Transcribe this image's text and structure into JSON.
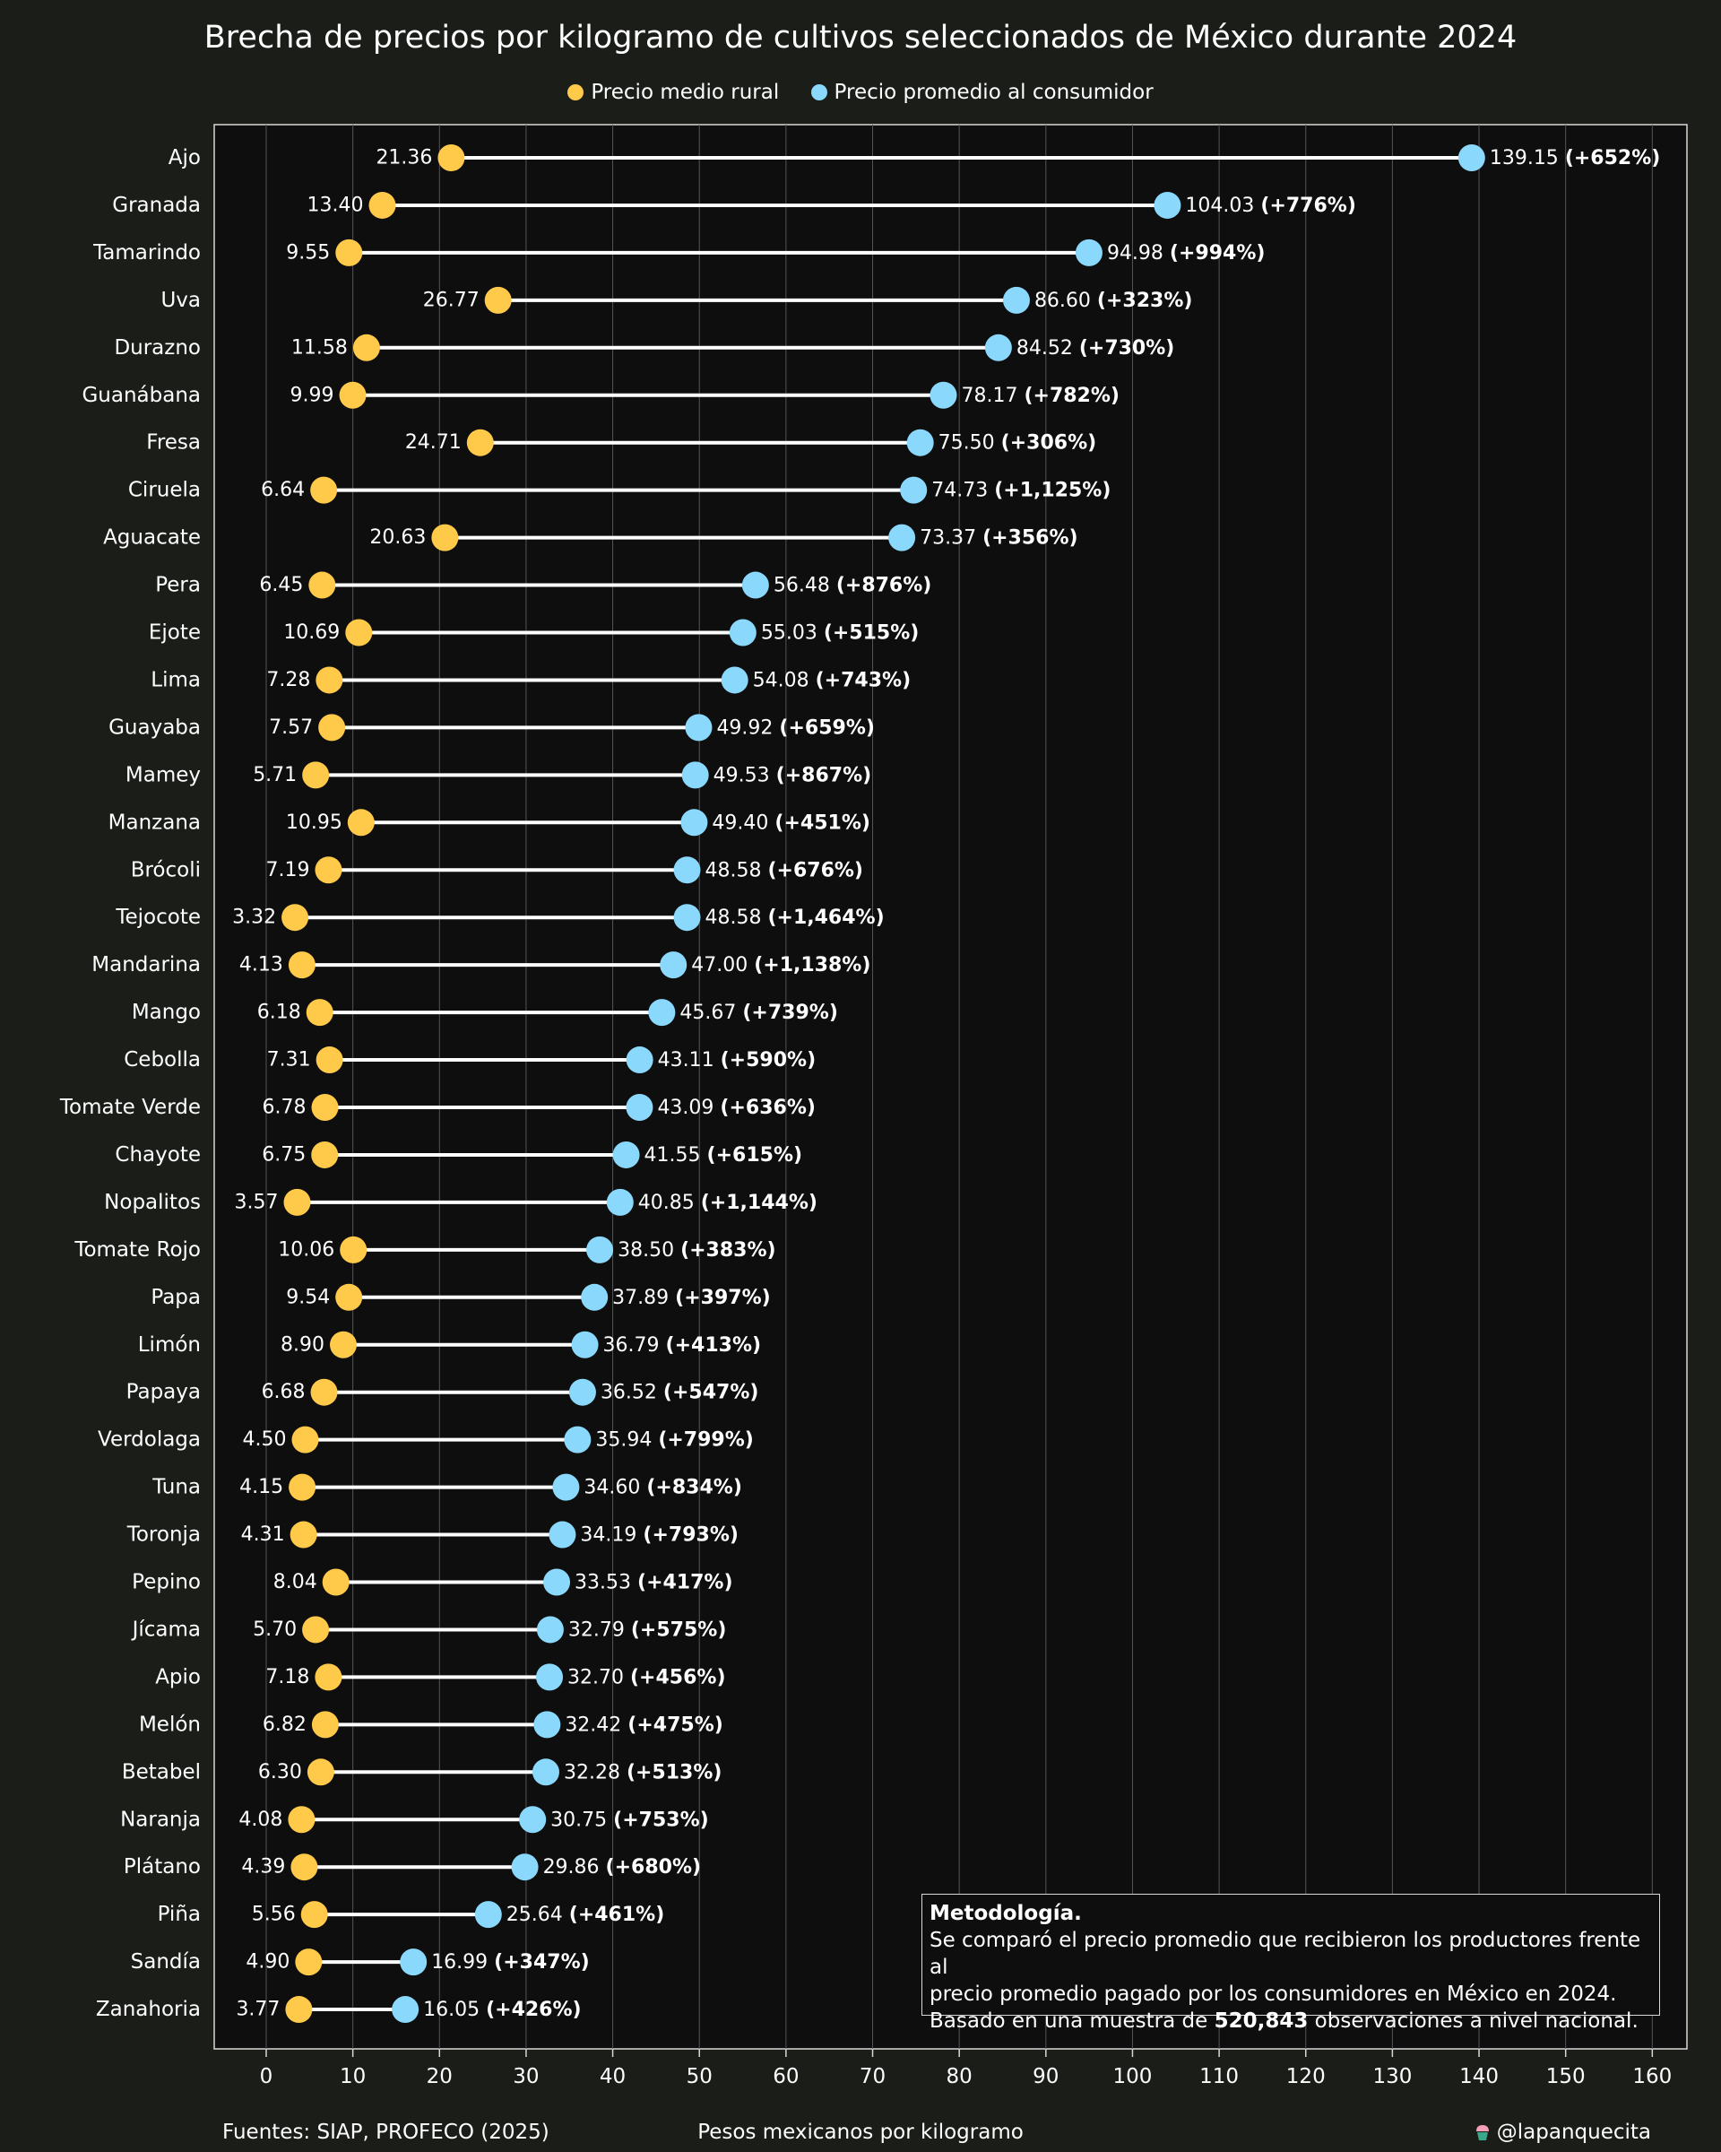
{
  "chart_data": {
    "type": "dumbbell",
    "title": "Brecha de precios por kilogramo de cultivos seleccionados de México durante 2024",
    "xlabel": "Pesos mexicanos por kilogramo",
    "xlim": [
      -6,
      164
    ],
    "xticks": [
      0,
      10,
      20,
      30,
      40,
      50,
      60,
      70,
      80,
      90,
      100,
      110,
      120,
      130,
      140,
      150,
      160
    ],
    "grid": true,
    "legend_position": "top-center",
    "series": [
      {
        "name": "Precio medio rural",
        "color": "#ffc94a"
      },
      {
        "name": "Precio promedio al consumidor",
        "color": "#8ad8fb"
      }
    ],
    "rows": [
      {
        "label": "Ajo",
        "rural": 21.36,
        "consumer": 139.15,
        "gap": "(+652%)"
      },
      {
        "label": "Granada",
        "rural": 13.4,
        "consumer": 104.03,
        "gap": "(+776%)"
      },
      {
        "label": "Tamarindo",
        "rural": 9.55,
        "consumer": 94.98,
        "gap": "(+994%)"
      },
      {
        "label": "Uva",
        "rural": 26.77,
        "consumer": 86.6,
        "gap": "(+323%)"
      },
      {
        "label": "Durazno",
        "rural": 11.58,
        "consumer": 84.52,
        "gap": "(+730%)"
      },
      {
        "label": "Guanábana",
        "rural": 9.99,
        "consumer": 78.17,
        "gap": "(+782%)"
      },
      {
        "label": "Fresa",
        "rural": 24.71,
        "consumer": 75.5,
        "gap": "(+306%)"
      },
      {
        "label": "Ciruela",
        "rural": 6.64,
        "consumer": 74.73,
        "gap": "(+1,125%)"
      },
      {
        "label": "Aguacate",
        "rural": 20.63,
        "consumer": 73.37,
        "gap": "(+356%)"
      },
      {
        "label": "Pera",
        "rural": 6.45,
        "consumer": 56.48,
        "gap": "(+876%)"
      },
      {
        "label": "Ejote",
        "rural": 10.69,
        "consumer": 55.03,
        "gap": "(+515%)"
      },
      {
        "label": "Lima",
        "rural": 7.28,
        "consumer": 54.08,
        "gap": "(+743%)"
      },
      {
        "label": "Guayaba",
        "rural": 7.57,
        "consumer": 49.92,
        "gap": "(+659%)"
      },
      {
        "label": "Mamey",
        "rural": 5.71,
        "consumer": 49.53,
        "gap": "(+867%)"
      },
      {
        "label": "Manzana",
        "rural": 10.95,
        "consumer": 49.4,
        "gap": "(+451%)"
      },
      {
        "label": "Brócoli",
        "rural": 7.19,
        "consumer": 48.58,
        "gap": "(+676%)"
      },
      {
        "label": "Tejocote",
        "rural": 3.32,
        "consumer": 48.58,
        "gap": "(+1,464%)"
      },
      {
        "label": "Mandarina",
        "rural": 4.13,
        "consumer": 47.0,
        "gap": "(+1,138%)"
      },
      {
        "label": "Mango",
        "rural": 6.18,
        "consumer": 45.67,
        "gap": "(+739%)"
      },
      {
        "label": "Cebolla",
        "rural": 7.31,
        "consumer": 43.11,
        "gap": "(+590%)"
      },
      {
        "label": "Tomate Verde",
        "rural": 6.78,
        "consumer": 43.09,
        "gap": "(+636%)"
      },
      {
        "label": "Chayote",
        "rural": 6.75,
        "consumer": 41.55,
        "gap": "(+615%)"
      },
      {
        "label": "Nopalitos",
        "rural": 3.57,
        "consumer": 40.85,
        "gap": "(+1,144%)"
      },
      {
        "label": "Tomate Rojo",
        "rural": 10.06,
        "consumer": 38.5,
        "gap": "(+383%)"
      },
      {
        "label": "Papa",
        "rural": 9.54,
        "consumer": 37.89,
        "gap": "(+397%)"
      },
      {
        "label": "Limón",
        "rural": 8.9,
        "consumer": 36.79,
        "gap": "(+413%)"
      },
      {
        "label": "Papaya",
        "rural": 6.68,
        "consumer": 36.52,
        "gap": "(+547%)"
      },
      {
        "label": "Verdolaga",
        "rural": 4.5,
        "consumer": 35.94,
        "gap": "(+799%)"
      },
      {
        "label": "Tuna",
        "rural": 4.15,
        "consumer": 34.6,
        "gap": "(+834%)"
      },
      {
        "label": "Toronja",
        "rural": 4.31,
        "consumer": 34.19,
        "gap": "(+793%)"
      },
      {
        "label": "Pepino",
        "rural": 8.04,
        "consumer": 33.53,
        "gap": "(+417%)"
      },
      {
        "label": "Jícama",
        "rural": 5.7,
        "consumer": 32.79,
        "gap": "(+575%)"
      },
      {
        "label": "Apio",
        "rural": 7.18,
        "consumer": 32.7,
        "gap": "(+456%)"
      },
      {
        "label": "Melón",
        "rural": 6.82,
        "consumer": 32.42,
        "gap": "(+475%)"
      },
      {
        "label": "Betabel",
        "rural": 6.3,
        "consumer": 32.28,
        "gap": "(+513%)"
      },
      {
        "label": "Naranja",
        "rural": 4.08,
        "consumer": 30.75,
        "gap": "(+753%)"
      },
      {
        "label": "Plátano",
        "rural": 4.39,
        "consumer": 29.86,
        "gap": "(+680%)"
      },
      {
        "label": "Piña",
        "rural": 5.56,
        "consumer": 25.64,
        "gap": "(+461%)"
      },
      {
        "label": "Sandía",
        "rural": 4.9,
        "consumer": 16.99,
        "gap": "(+347%)"
      },
      {
        "label": "Zanahoria",
        "rural": 3.77,
        "consumer": 16.05,
        "gap": "(+426%)"
      }
    ]
  },
  "footer": {
    "source": "Fuentes: SIAP, PROFECO (2025)",
    "credit": "@lapanquecita"
  },
  "methodology": {
    "title": "Metodología.",
    "line1": "Se comparó el precio promedio que recibieron los productores frente al",
    "line2": "precio promedio pagado por los consumidores en México en 2024.",
    "line3_prefix": "Basado en una muestra de ",
    "line3_number": "520,843",
    "line3_suffix": " observaciones a nivel nacional."
  },
  "colors": {
    "background": "#1b1d19",
    "plot_background": "#0e0e0e",
    "rural": "#ffc94a",
    "consumer": "#8ad8fb",
    "connector": "#ffffff",
    "grid": "#555555"
  }
}
